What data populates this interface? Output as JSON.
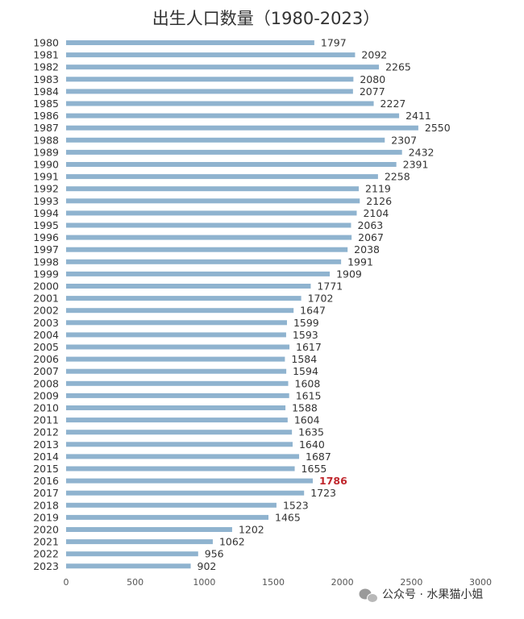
{
  "chart_data": {
    "type": "bar",
    "orientation": "horizontal",
    "title": "出生人口数量（1980-2023）",
    "categories": [
      "1980",
      "1981",
      "1982",
      "1983",
      "1984",
      "1985",
      "1986",
      "1987",
      "1988",
      "1989",
      "1990",
      "1991",
      "1992",
      "1993",
      "1994",
      "1995",
      "1996",
      "1997",
      "1998",
      "1999",
      "2000",
      "2001",
      "2002",
      "2003",
      "2004",
      "2005",
      "2006",
      "2007",
      "2008",
      "2009",
      "2010",
      "2011",
      "2012",
      "2013",
      "2014",
      "2015",
      "2016",
      "2017",
      "2018",
      "2019",
      "2020",
      "2021",
      "2022",
      "2023"
    ],
    "values": [
      1797,
      2092,
      2265,
      2080,
      2077,
      2227,
      2411,
      2550,
      2307,
      2432,
      2391,
      2258,
      2119,
      2126,
      2104,
      2063,
      2067,
      2038,
      1991,
      1909,
      1771,
      1702,
      1647,
      1599,
      1593,
      1617,
      1584,
      1594,
      1608,
      1615,
      1588,
      1604,
      1635,
      1640,
      1687,
      1655,
      1786,
      1723,
      1523,
      1465,
      1202,
      1062,
      956,
      902
    ],
    "xlim": [
      0,
      3000
    ],
    "xticks": [
      0,
      500,
      1000,
      1500,
      2000,
      2500,
      3000
    ],
    "highlight": {
      "category": "2016",
      "color": "#c0272d"
    },
    "bar_color": "#8fb3cf",
    "grid": false,
    "legend": "none"
  },
  "watermark": {
    "text": "公众号 · 水果猫小姐",
    "icon": "wechat-icon"
  }
}
